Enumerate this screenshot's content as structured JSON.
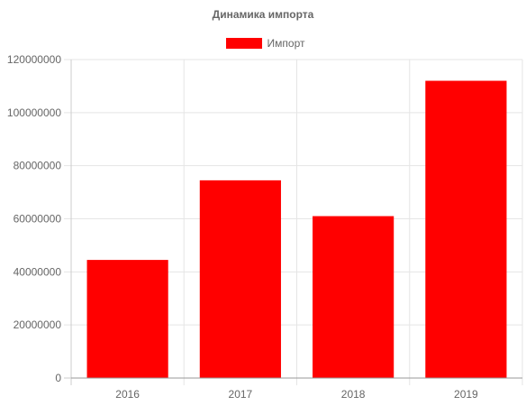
{
  "chart_data": {
    "type": "bar",
    "title": "Динамика импорта",
    "categories": [
      "2016",
      "2017",
      "2018",
      "2019"
    ],
    "series": [
      {
        "name": "Импорт",
        "values": [
          44500000,
          74500000,
          61000000,
          112000000
        ],
        "color": "#ff0000"
      }
    ],
    "ylim": [
      0,
      120000000
    ],
    "yticks": [
      "0",
      "20000000",
      "40000000",
      "60000000",
      "80000000",
      "100000000",
      "120000000"
    ],
    "grid": true,
    "legend_position": "top"
  }
}
